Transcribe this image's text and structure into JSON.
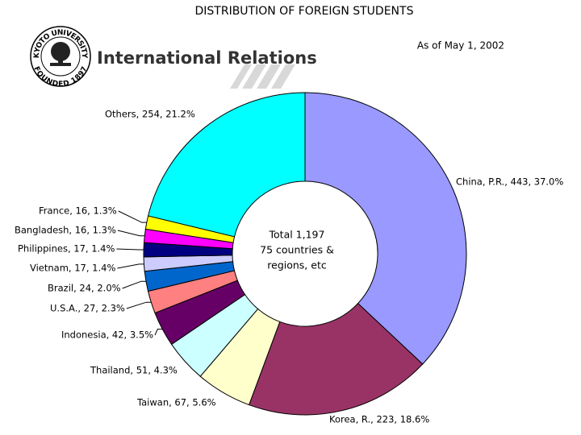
{
  "header": {
    "title": "International Relations",
    "logo_top": "KYOTO UNIVERSITY",
    "logo_bottom": "FOUNDED 1897"
  },
  "chart_data": {
    "type": "donut",
    "title": "DISTRIBUTION OF FOREIGN STUDENTS",
    "annotation": "As of May 1, 2002",
    "center_text": [
      "Total 1,197",
      "75 countries &",
      "regions, etc"
    ],
    "values": [
      443,
      223,
      67,
      51,
      42,
      27,
      24,
      17,
      17,
      16,
      16,
      254
    ],
    "value_labels": [
      "China, P.R., 443, 37.0%",
      "Korea, R., 223, 18.6%",
      "Taiwan, 67, 5.6%",
      "Thailand, 51, 4.3%",
      "Indonesia, 42, 3.5%",
      "U.S.A., 27, 2.3%",
      "Brazil, 24, 2.0%",
      "Vietnam, 17, 1.4%",
      "Philippines, 17, 1.4%",
      "Bangladesh, 16, 1.3%",
      "France, 16, 1.3%",
      "Others, 254, 21.2%"
    ],
    "colors": [
      "#9999ff",
      "#993366",
      "#ffffcc",
      "#ccffff",
      "#660066",
      "#ff8080",
      "#0066cc",
      "#ccccff",
      "#000080",
      "#ff00ff",
      "#ffff00",
      "#00ffff"
    ]
  }
}
